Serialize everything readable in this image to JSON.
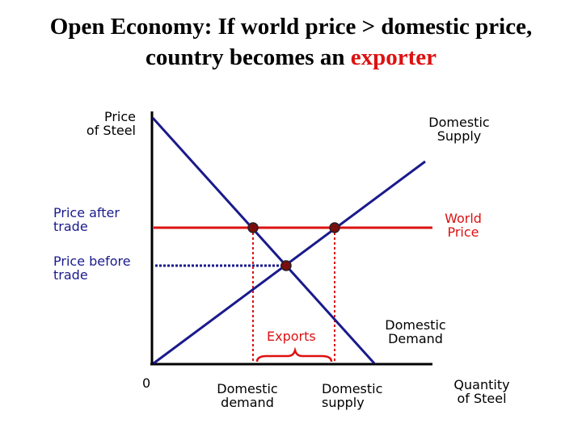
{
  "title": {
    "line1": "Open Economy: If world price > domestic price,",
    "line2_prefix": "country becomes an ",
    "line2_highlight": "exporter"
  },
  "y_axis_label": [
    "Price",
    "of Steel"
  ],
  "x_axis_label": [
    "Quantity",
    "of Steel"
  ],
  "origin_label": "0",
  "supply_label": [
    "Domestic",
    "Supply"
  ],
  "demand_label": [
    "Domestic",
    "Demand"
  ],
  "world_price_label": [
    "World",
    "Price"
  ],
  "price_after_label": [
    "Price after",
    "trade"
  ],
  "price_before_label": [
    "Price before",
    "trade"
  ],
  "exports_label": "Exports",
  "domestic_demand_qty_label": [
    "Domestic",
    "demand"
  ],
  "domestic_supply_qty_label": [
    "Domestic",
    "supply"
  ],
  "colors": {
    "axis": "#000000",
    "curve": "#1a1a8c",
    "world_price": "#dd1111",
    "dotted_before": "#1a1a8c",
    "dotted_after": "#dd1111",
    "point": "#7a0e0e",
    "title_highlight": "#dd1111"
  }
}
